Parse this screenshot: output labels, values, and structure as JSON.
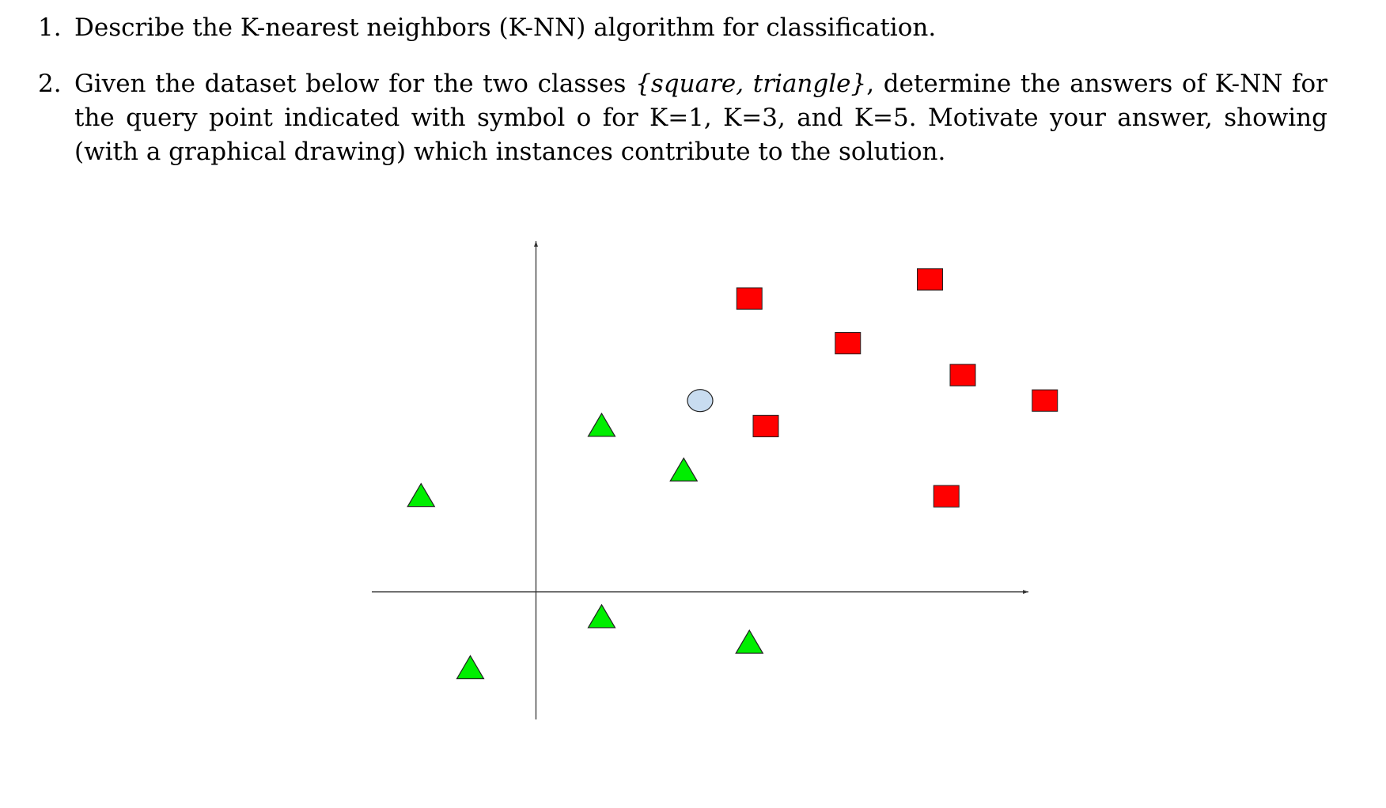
{
  "questions": [
    {
      "number": "1.",
      "text": "Describe the K-nearest neighbors (K-NN) algorithm for classification."
    },
    {
      "number": "2.",
      "text_before_math": "Given the dataset below for the two classes ",
      "math": "{square, triangle}",
      "text_after_math": ", determine the answers of K-NN for the query point indicated with symbol o for K=1, K=3, and K=5. Motivate your answer, showing (with a graphical drawing) which instances contribute to the solution."
    }
  ],
  "chart_data": {
    "type": "scatter",
    "title": "",
    "xlabel": "",
    "ylabel": "",
    "xlim": [
      -2.0,
      6.0
    ],
    "ylim": [
      -2.0,
      5.5
    ],
    "grid": false,
    "axis_ticks": false,
    "legend": "none",
    "colors": {
      "square_fill": "#ff0000",
      "triangle_fill": "#00ee00",
      "query_fill": "#c8dcf0",
      "outline": "#222222",
      "axis": "#333333"
    },
    "series": [
      {
        "class": "square",
        "marker": "square",
        "points": [
          [
            2.6,
            4.6
          ],
          [
            4.8,
            4.9
          ],
          [
            3.8,
            3.9
          ],
          [
            5.2,
            3.4
          ],
          [
            6.2,
            3.0
          ],
          [
            2.8,
            2.6
          ],
          [
            5.0,
            1.5
          ]
        ]
      },
      {
        "class": "triangle",
        "marker": "triangle",
        "points": [
          [
            0.8,
            2.6
          ],
          [
            1.8,
            1.9
          ],
          [
            -1.4,
            1.5
          ],
          [
            0.8,
            -0.4
          ],
          [
            2.6,
            -0.8
          ],
          [
            -0.8,
            -1.2
          ]
        ]
      },
      {
        "class": "query",
        "marker": "circle",
        "points": [
          [
            2.0,
            3.0
          ]
        ]
      }
    ]
  }
}
